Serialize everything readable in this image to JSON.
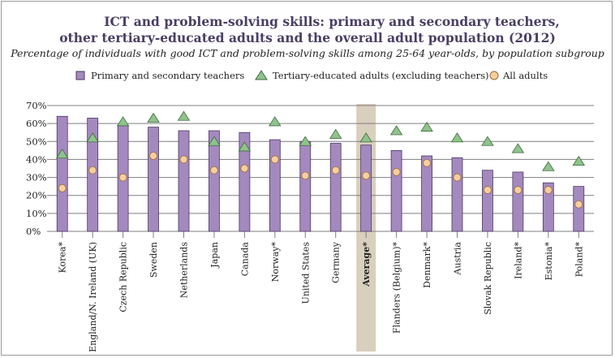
{
  "title_line1": "ICT and problem-solving skills: primary and secondary teachers,",
  "title_line2": "other tertiary-educated adults and the overall adult population (2012)",
  "subtitle": "Percentage of individuals with good ICT and problem-solving skills among 25-64 year-olds, by population subgroup",
  "colors": {
    "bar": "#a489bf",
    "bar_stroke": "#4b3a63",
    "triangle": "#8fc38c",
    "triangle_stroke": "#3f6b3c",
    "circle": "#f7cf9f",
    "circle_stroke": "#9a6b35",
    "highlight": "#d9cfbd",
    "grid": "#7f7f7f",
    "title": "#4a3e63"
  },
  "chart_data": {
    "type": "bar",
    "ylim": [
      0,
      70
    ],
    "yticks": [
      "0%",
      "10%",
      "20%",
      "30%",
      "40%",
      "50%",
      "60%",
      "70%"
    ],
    "categories": [
      "Korea*",
      "England/N. Ireland (UK)",
      "Czech Republic",
      "Sweden",
      "Netherlands",
      "Japan",
      "Canada",
      "Norway*",
      "United States",
      "Germany",
      "Average*",
      "Flanders (Belgium)*",
      "Denmark*",
      "Austria",
      "Slovak Republic",
      "Ireland*",
      "Estonia*",
      "Poland*"
    ],
    "highlight_category": "Average*",
    "grid": true,
    "legend_position": "top",
    "series": [
      {
        "name": "Primary and secondary teachers",
        "marker": "bar",
        "values": [
          64,
          63,
          59,
          58,
          56,
          56,
          55,
          51,
          50,
          49,
          48,
          45,
          42,
          41,
          34,
          33,
          27,
          25
        ]
      },
      {
        "name": "Tertiary-educated adults (excluding teachers)",
        "marker": "triangle",
        "values": [
          43,
          52,
          61,
          63,
          64,
          50,
          47,
          61,
          50,
          54,
          52,
          56,
          58,
          52,
          50,
          46,
          36,
          39
        ]
      },
      {
        "name": "All adults",
        "marker": "circle",
        "values": [
          24,
          34,
          30,
          42,
          40,
          34,
          35,
          40,
          31,
          34,
          31,
          33,
          38,
          30,
          23,
          23,
          23,
          15
        ]
      }
    ]
  }
}
